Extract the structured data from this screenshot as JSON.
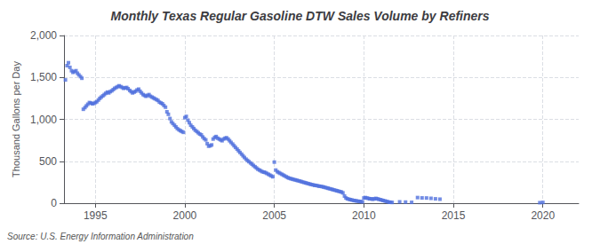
{
  "chart_data": {
    "type": "scatter",
    "title": "Monthly Texas Regular Gasoline DTW Sales Volume by Refiners",
    "ylabel": "Thousand Gallons per Day",
    "annotations": [
      "Source: U.S. Energy Information Administration"
    ],
    "marker": "square",
    "grid": true,
    "xlim": [
      1993.25,
      2022.0
    ],
    "xticks": [
      1995,
      2000,
      2005,
      2010,
      2015,
      2020
    ],
    "ylim": [
      0,
      2000
    ],
    "yticks": [
      0,
      500,
      {
        "value": 1000,
        "label": "1,000"
      },
      {
        "value": 1500,
        "label": "1,500"
      },
      {
        "value": 2000,
        "label": "2,000"
      }
    ],
    "x": [
      1993.33,
      1993.42,
      1993.5,
      1993.58,
      1993.67,
      1993.75,
      1993.83,
      1993.92,
      1994.0,
      1994.08,
      1994.17,
      1994.25,
      1994.33,
      1994.42,
      1994.5,
      1994.58,
      1994.67,
      1994.75,
      1994.83,
      1994.92,
      1995.0,
      1995.08,
      1995.17,
      1995.25,
      1995.33,
      1995.42,
      1995.5,
      1995.58,
      1995.67,
      1995.75,
      1995.83,
      1995.92,
      1996.0,
      1996.08,
      1996.17,
      1996.25,
      1996.33,
      1996.42,
      1996.5,
      1996.58,
      1996.67,
      1996.75,
      1996.83,
      1996.92,
      1997.0,
      1997.08,
      1997.17,
      1997.25,
      1997.33,
      1997.42,
      1997.5,
      1997.58,
      1997.67,
      1997.75,
      1997.83,
      1997.92,
      1998.0,
      1998.08,
      1998.17,
      1998.25,
      1998.33,
      1998.42,
      1998.5,
      1998.58,
      1998.67,
      1998.75,
      1998.83,
      1998.92,
      1999.0,
      1999.08,
      1999.17,
      1999.25,
      1999.33,
      1999.42,
      1999.5,
      1999.58,
      1999.67,
      1999.75,
      1999.83,
      1999.92,
      2000.0,
      2000.08,
      2000.17,
      2000.25,
      2000.33,
      2000.42,
      2000.5,
      2000.58,
      2000.67,
      2000.75,
      2000.83,
      2000.92,
      2001.0,
      2001.08,
      2001.17,
      2001.25,
      2001.33,
      2001.42,
      2001.5,
      2001.58,
      2001.67,
      2001.75,
      2001.83,
      2001.92,
      2002.0,
      2002.08,
      2002.17,
      2002.25,
      2002.33,
      2002.42,
      2002.5,
      2002.58,
      2002.67,
      2002.75,
      2002.83,
      2002.92,
      2003.0,
      2003.08,
      2003.17,
      2003.25,
      2003.33,
      2003.42,
      2003.5,
      2003.58,
      2003.67,
      2003.75,
      2003.83,
      2003.92,
      2004.0,
      2004.08,
      2004.17,
      2004.25,
      2004.33,
      2004.42,
      2004.5,
      2004.58,
      2004.67,
      2004.75,
      2004.83,
      2004.92,
      2005.0,
      2005.08,
      2005.17,
      2005.25,
      2005.33,
      2005.42,
      2005.5,
      2005.58,
      2005.67,
      2005.75,
      2005.83,
      2005.92,
      2006.0,
      2006.08,
      2006.17,
      2006.25,
      2006.33,
      2006.42,
      2006.5,
      2006.58,
      2006.67,
      2006.75,
      2006.83,
      2006.92,
      2007.0,
      2007.08,
      2007.17,
      2007.25,
      2007.33,
      2007.42,
      2007.5,
      2007.58,
      2007.67,
      2007.75,
      2007.83,
      2007.92,
      2008.0,
      2008.08,
      2008.17,
      2008.25,
      2008.33,
      2008.42,
      2008.5,
      2008.58,
      2008.67,
      2008.75,
      2008.83,
      2008.92,
      2009.0,
      2009.08,
      2009.17,
      2009.25,
      2009.33,
      2009.42,
      2009.5,
      2009.58,
      2009.67,
      2009.75,
      2009.83,
      2009.92,
      2010.0,
      2010.08,
      2010.17,
      2010.25,
      2010.33,
      2010.42,
      2010.5,
      2010.58,
      2010.67,
      2010.75,
      2010.83,
      2010.92,
      2011.0,
      2011.08,
      2011.17,
      2011.25,
      2011.33,
      2011.42,
      2011.5,
      2011.58,
      2012.0,
      2012.33,
      2012.67,
      2013.0,
      2013.25,
      2013.5,
      2013.75,
      2014.0,
      2014.25,
      2019.83,
      2020.0
    ],
    "values": [
      1470,
      1640,
      1675,
      1620,
      1580,
      1560,
      1570,
      1580,
      1550,
      1530,
      1510,
      1490,
      1120,
      1140,
      1160,
      1180,
      1200,
      1195,
      1185,
      1190,
      1200,
      1210,
      1230,
      1250,
      1265,
      1280,
      1295,
      1310,
      1325,
      1315,
      1330,
      1340,
      1355,
      1370,
      1380,
      1390,
      1400,
      1390,
      1380,
      1370,
      1375,
      1380,
      1365,
      1345,
      1330,
      1315,
      1325,
      1335,
      1350,
      1360,
      1335,
      1315,
      1295,
      1285,
      1275,
      1285,
      1295,
      1275,
      1265,
      1255,
      1245,
      1235,
      1225,
      1205,
      1195,
      1185,
      1165,
      1145,
      1090,
      1060,
      1010,
      970,
      950,
      930,
      910,
      890,
      875,
      865,
      855,
      845,
      1020,
      1035,
      990,
      960,
      930,
      910,
      890,
      870,
      855,
      840,
      825,
      815,
      790,
      770,
      755,
      710,
      680,
      685,
      695,
      765,
      785,
      795,
      775,
      765,
      755,
      745,
      765,
      775,
      780,
      765,
      745,
      725,
      705,
      685,
      665,
      645,
      625,
      605,
      585,
      565,
      545,
      525,
      510,
      495,
      480,
      465,
      450,
      435,
      420,
      405,
      395,
      385,
      375,
      370,
      365,
      355,
      345,
      335,
      325,
      315,
      490,
      395,
      375,
      365,
      355,
      345,
      335,
      325,
      315,
      305,
      298,
      292,
      288,
      282,
      278,
      273,
      268,
      263,
      258,
      252,
      247,
      242,
      237,
      232,
      227,
      222,
      218,
      213,
      212,
      207,
      203,
      201,
      197,
      193,
      188,
      183,
      178,
      173,
      168,
      163,
      158,
      153,
      148,
      143,
      138,
      133,
      123,
      85,
      62,
      52,
      47,
      42,
      38,
      33,
      30,
      27,
      24,
      21,
      19,
      16,
      62,
      67,
      62,
      57,
      52,
      52,
      47,
      52,
      57,
      52,
      47,
      42,
      37,
      32,
      27,
      22,
      17,
      12,
      11,
      9,
      16,
      13,
      10,
      67,
      63,
      62,
      58,
      52,
      48,
      6,
      9
    ]
  }
}
